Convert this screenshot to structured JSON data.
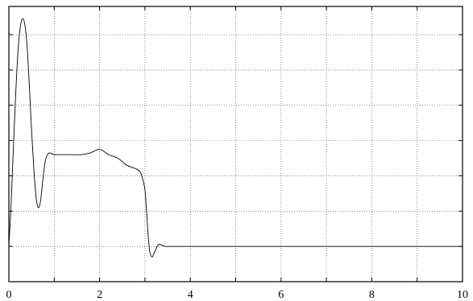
{
  "chart_data": {
    "type": "line",
    "title": "",
    "xlabel": "",
    "ylabel": "",
    "xlim": [
      0,
      10
    ],
    "ylim": [
      -1,
      6.8
    ],
    "grid": true,
    "x_ticks": [
      0,
      1,
      2,
      3,
      4,
      5,
      6,
      7,
      8,
      9,
      10
    ],
    "x_tick_labels": [
      "0",
      "",
      "2",
      "",
      "4",
      "",
      "6",
      "",
      "8",
      "",
      "10"
    ],
    "y_ticks": [
      0,
      1,
      2,
      3,
      4,
      5,
      6
    ],
    "y_tick_labels": [
      "",
      "",
      "",
      "",
      "",
      "",
      ""
    ],
    "series": [
      {
        "color": "#000000",
        "x": [
          0,
          0.05,
          0.1,
          0.15,
          0.2,
          0.25,
          0.3,
          0.35,
          0.4,
          0.45,
          0.5,
          0.55,
          0.6,
          0.65,
          0.7,
          0.75,
          0.8,
          0.85,
          0.9,
          0.95,
          1.0,
          1.05,
          1.1,
          1.15,
          1.2,
          1.25,
          1.3,
          1.4,
          1.5,
          1.6,
          1.8,
          2.0,
          2.2,
          2.4,
          2.6,
          2.8,
          2.9,
          2.95,
          3.0,
          3.03,
          3.06,
          3.1,
          3.15,
          3.2,
          3.25,
          3.3,
          3.35,
          3.4,
          3.45,
          3.5,
          3.55,
          3.6,
          3.65,
          3.7,
          3.75,
          3.8,
          3.85,
          3.9,
          3.95,
          4.0,
          4.05,
          4.1,
          4.15,
          4.2,
          4.3,
          4.4,
          4.5,
          5,
          6,
          7,
          8,
          9,
          10
        ],
        "y": [
          0.0,
          1.2,
          2.8,
          4.3,
          5.5,
          6.2,
          6.45,
          6.3,
          5.7,
          4.6,
          3.3,
          2.2,
          1.4,
          1.1,
          1.3,
          1.9,
          2.4,
          2.6,
          2.65,
          2.62,
          2.6,
          2.6,
          2.6,
          2.6,
          2.6,
          2.6,
          2.6,
          2.6,
          2.6,
          2.6,
          2.65,
          2.75,
          2.6,
          2.5,
          2.3,
          2.2,
          2.1,
          1.9,
          1.6,
          1.1,
          0.5,
          -0.1,
          -0.3,
          -0.2,
          -0.05,
          0.05,
          0.05,
          0.02,
          0.0,
          0.0,
          0.0,
          0.0,
          0.0,
          0.0,
          0.0,
          0.0,
          0.0,
          0.0,
          0.0,
          0.0,
          0.0,
          0.0,
          0.0,
          0.0,
          0.0,
          0.0,
          0.0,
          0.0,
          0.0,
          0.0,
          0.0,
          0.0,
          0.0
        ]
      }
    ]
  }
}
